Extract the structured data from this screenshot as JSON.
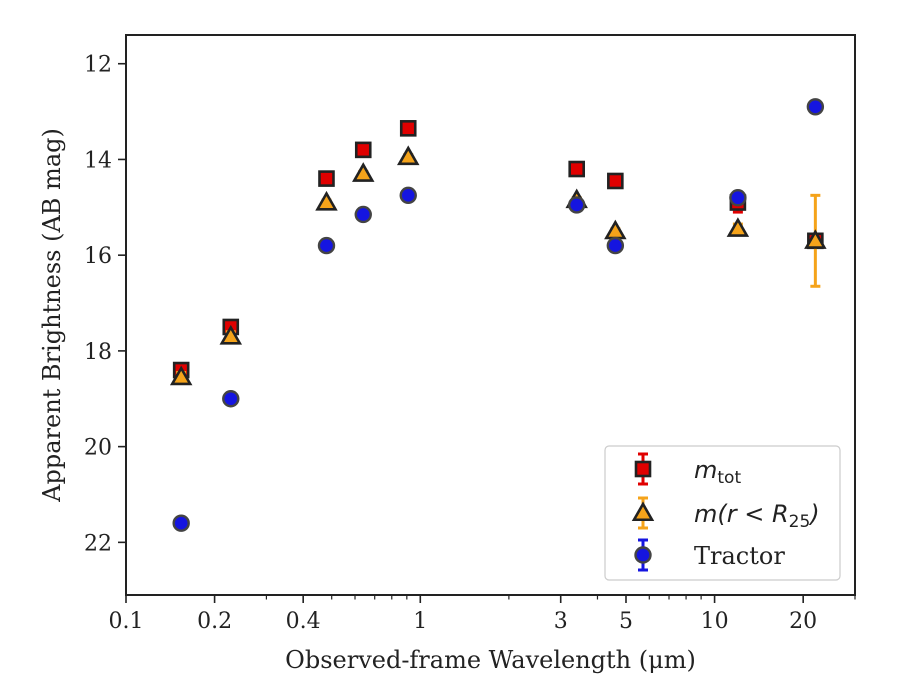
{
  "chart_data": {
    "type": "scatter",
    "xlabel": "Observed-frame Wavelength (μm)",
    "ylabel": "Apparent Brightness (AB mag)",
    "x_scale": "log",
    "xlim": [
      0.1,
      30
    ],
    "ylim": [
      23.1,
      11.4
    ],
    "y_inverted": true,
    "grid": false,
    "legend_position": "lower-right",
    "x_ticks": [
      0.1,
      0.2,
      0.4,
      1,
      3,
      5,
      10,
      20
    ],
    "x_tick_labels": [
      "0.1",
      "0.2",
      "0.4",
      "1",
      "3",
      "5",
      "10",
      "20"
    ],
    "y_ticks": [
      12,
      14,
      16,
      18,
      20,
      22
    ],
    "y_tick_labels": [
      "12",
      "14",
      "16",
      "18",
      "20",
      "22"
    ],
    "series": [
      {
        "name": "m_tot",
        "legend_label": {
          "main": "m",
          "sub": "tot"
        },
        "marker": "square",
        "color": "#e00000",
        "edge_color": "#222222",
        "points": [
          {
            "x": 0.154,
            "y": 18.4,
            "err": 0.1
          },
          {
            "x": 0.227,
            "y": 17.5,
            "err": 0.1
          },
          {
            "x": 0.48,
            "y": 14.4,
            "err": 0.05
          },
          {
            "x": 0.64,
            "y": 13.8,
            "err": 0.05
          },
          {
            "x": 0.91,
            "y": 13.35,
            "err": 0.05
          },
          {
            "x": 3.4,
            "y": 14.2,
            "err": 0.05
          },
          {
            "x": 4.6,
            "y": 14.45,
            "err": 0.05
          },
          {
            "x": 12.0,
            "y": 14.9,
            "err": 0.2
          },
          {
            "x": 22.0,
            "y": 15.7,
            "err": 0.1
          }
        ]
      },
      {
        "name": "m(r < R25)",
        "legend_label": {
          "main": "m(r < R",
          "sub": "25",
          "tail": ")"
        },
        "marker": "triangle",
        "color": "#f5a31a",
        "edge_color": "#222222",
        "points": [
          {
            "x": 0.154,
            "y": 18.55,
            "err": 0.1
          },
          {
            "x": 0.227,
            "y": 17.7,
            "err": 0.1
          },
          {
            "x": 0.48,
            "y": 14.9,
            "err": 0.05
          },
          {
            "x": 0.64,
            "y": 14.3,
            "err": 0.05
          },
          {
            "x": 0.91,
            "y": 13.95,
            "err": 0.05
          },
          {
            "x": 3.4,
            "y": 14.85,
            "err": 0.05
          },
          {
            "x": 4.6,
            "y": 15.5,
            "err": 0.05
          },
          {
            "x": 12.0,
            "y": 15.45,
            "err": 0.1
          },
          {
            "x": 22.0,
            "y": 15.7,
            "err": 0.95
          }
        ]
      },
      {
        "name": "Tractor",
        "legend_label": {
          "main": "Tractor"
        },
        "marker": "circle",
        "color": "#1515e0",
        "edge_color": "#444444",
        "points": [
          {
            "x": 0.154,
            "y": 21.6,
            "err": 0.1
          },
          {
            "x": 0.227,
            "y": 19.0,
            "err": 0.1
          },
          {
            "x": 0.48,
            "y": 15.8,
            "err": 0.05
          },
          {
            "x": 0.64,
            "y": 15.15,
            "err": 0.05
          },
          {
            "x": 0.91,
            "y": 14.75,
            "err": 0.05
          },
          {
            "x": 3.4,
            "y": 14.95,
            "err": 0.05
          },
          {
            "x": 4.6,
            "y": 15.8,
            "err": 0.05
          },
          {
            "x": 12.0,
            "y": 14.8,
            "err": 0.1
          },
          {
            "x": 22.0,
            "y": 12.9,
            "err": 0.05
          }
        ]
      }
    ]
  }
}
